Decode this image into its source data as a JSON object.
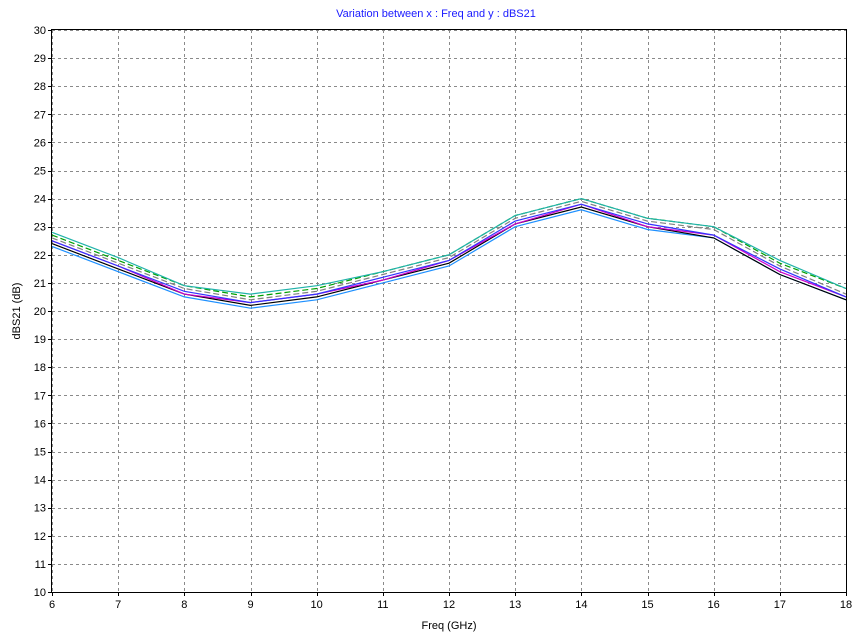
{
  "chart_data": {
    "type": "line",
    "title": "Variation between  x : Freq and y : dBS21",
    "xlabel": "Freq (GHz)",
    "ylabel": "dBS21 (dB)",
    "xlim": [
      6,
      18
    ],
    "ylim": [
      10,
      30
    ],
    "grid": true,
    "x_ticks": [
      6,
      7,
      8,
      9,
      10,
      11,
      12,
      13,
      14,
      15,
      16,
      17,
      18
    ],
    "y_ticks": [
      10,
      11,
      12,
      13,
      14,
      15,
      16,
      17,
      18,
      19,
      20,
      21,
      22,
      23,
      24,
      25,
      26,
      27,
      28,
      29,
      30
    ],
    "x": [
      6,
      7,
      8,
      9,
      10,
      11,
      12,
      13,
      14,
      15,
      16,
      17,
      18
    ],
    "series": [
      {
        "color": "#1e90ff",
        "values": [
          22.3,
          21.4,
          20.5,
          20.1,
          20.4,
          21.0,
          21.6,
          23.0,
          23.6,
          22.9,
          22.6,
          21.3,
          20.4
        ]
      },
      {
        "color": "#000000",
        "values": [
          22.4,
          21.5,
          20.6,
          20.2,
          20.5,
          21.1,
          21.7,
          23.1,
          23.7,
          23.0,
          22.6,
          21.3,
          20.4
        ]
      },
      {
        "color": "#cc00cc",
        "values": [
          22.5,
          21.6,
          20.6,
          20.3,
          20.6,
          21.1,
          21.8,
          23.1,
          23.8,
          23.0,
          22.7,
          21.4,
          20.5
        ]
      },
      {
        "color": "#3333ff",
        "values": [
          22.5,
          21.6,
          20.7,
          20.3,
          20.6,
          21.2,
          21.8,
          23.2,
          23.8,
          23.1,
          22.7,
          21.5,
          20.5
        ]
      },
      {
        "color": "#808080",
        "dashed": true,
        "values": [
          22.6,
          21.7,
          20.8,
          20.4,
          20.7,
          21.3,
          21.9,
          23.3,
          23.9,
          23.2,
          22.9,
          21.6,
          20.6
        ]
      },
      {
        "color": "#00a000",
        "dashed": true,
        "values": [
          22.7,
          21.8,
          20.9,
          20.5,
          20.8,
          21.4,
          22.0,
          23.4,
          24.0,
          23.3,
          23.0,
          21.7,
          20.8
        ]
      },
      {
        "color": "#20b2aa",
        "values": [
          22.8,
          21.9,
          20.9,
          20.6,
          20.9,
          21.4,
          22.0,
          23.4,
          24.0,
          23.3,
          23.0,
          21.8,
          20.8
        ]
      }
    ]
  }
}
